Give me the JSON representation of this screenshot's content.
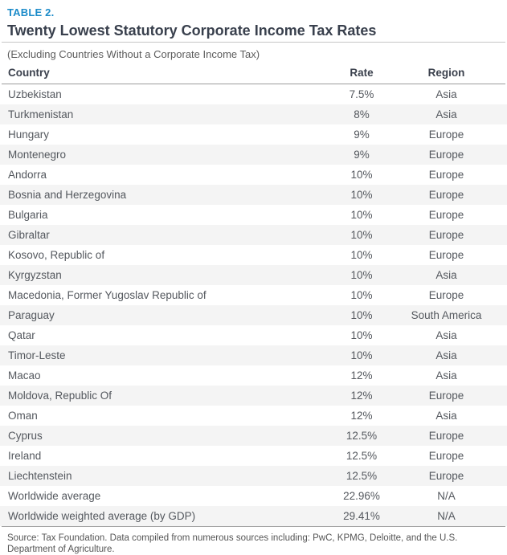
{
  "header": {
    "table_label": "TABLE 2.",
    "title": "Twenty Lowest Statutory Corporate Income Tax Rates",
    "subtitle": "(Excluding Countries Without a Corporate Income Tax)"
  },
  "source": "Source: Tax Foundation. Data compiled from numerous sources including: PwC, KPMG, Deloitte, and the U.S. Department of Agriculture.",
  "colors": {
    "accent_blue": "#1b8bc9",
    "title_text": "#39404d",
    "body_text": "#54585e",
    "row_stripe": "#f4f4f4",
    "rule_light": "#c6c6c6",
    "rule_dark": "#9b9b9b"
  },
  "chart_data": {
    "type": "table",
    "title": "Twenty Lowest Statutory Corporate Income Tax Rates",
    "subtitle": "(Excluding Countries Without a Corporate Income Tax)",
    "columns": [
      "Country",
      "Rate",
      "Region"
    ],
    "rows": [
      [
        "Uzbekistan",
        "7.5%",
        "Asia"
      ],
      [
        "Turkmenistan",
        "8%",
        "Asia"
      ],
      [
        "Hungary",
        "9%",
        "Europe"
      ],
      [
        "Montenegro",
        "9%",
        "Europe"
      ],
      [
        "Andorra",
        "10%",
        "Europe"
      ],
      [
        "Bosnia and Herzegovina",
        "10%",
        "Europe"
      ],
      [
        "Bulgaria",
        "10%",
        "Europe"
      ],
      [
        "Gibraltar",
        "10%",
        "Europe"
      ],
      [
        "Kosovo, Republic of",
        "10%",
        "Europe"
      ],
      [
        "Kyrgyzstan",
        "10%",
        "Asia"
      ],
      [
        "Macedonia, Former Yugoslav Republic of",
        "10%",
        "Europe"
      ],
      [
        "Paraguay",
        "10%",
        "South America"
      ],
      [
        "Qatar",
        "10%",
        "Asia"
      ],
      [
        "Timor-Leste",
        "10%",
        "Asia"
      ],
      [
        "Macao",
        "12%",
        "Asia"
      ],
      [
        "Moldova, Republic Of",
        "12%",
        "Europe"
      ],
      [
        "Oman",
        "12%",
        "Asia"
      ],
      [
        "Cyprus",
        "12.5%",
        "Europe"
      ],
      [
        "Ireland",
        "12.5%",
        "Europe"
      ],
      [
        "Liechtenstein",
        "12.5%",
        "Europe"
      ],
      [
        "Worldwide average",
        "22.96%",
        "N/A"
      ],
      [
        "Worldwide weighted average (by GDP)",
        "29.41%",
        "N/A"
      ]
    ],
    "source": "Source: Tax Foundation. Data compiled from numerous sources including: PwC, KPMG, Deloitte, and the U.S. Department of Agriculture."
  }
}
